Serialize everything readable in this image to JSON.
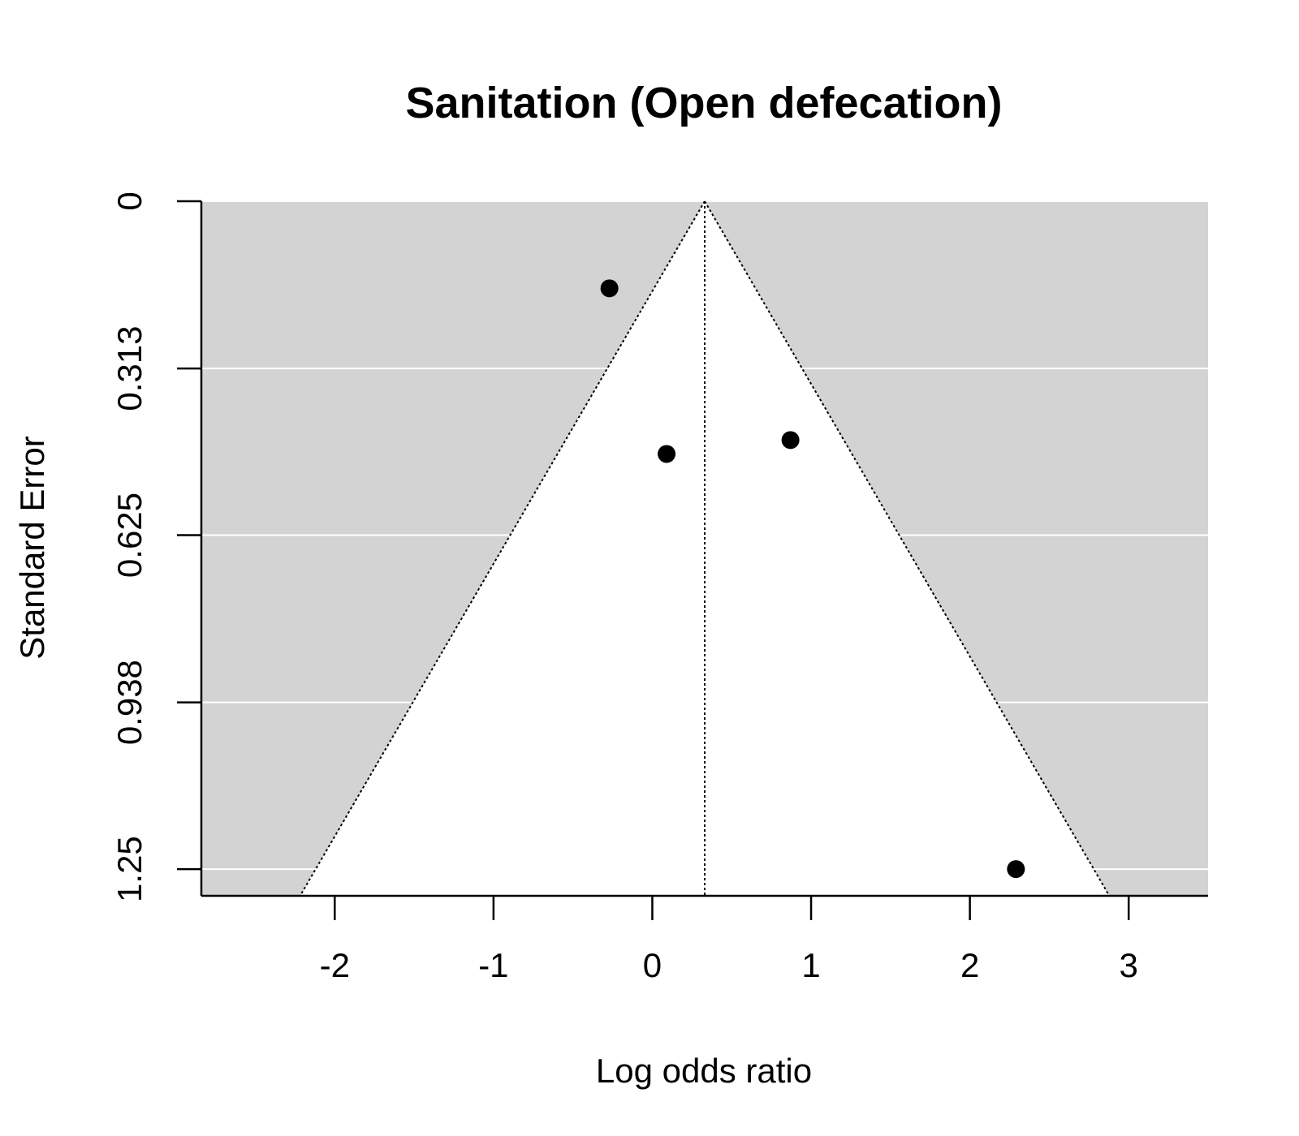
{
  "chart_data": {
    "type": "scatter",
    "subtype": "funnel",
    "title": "Sanitation (Open defecation)",
    "xlabel": "Log odds ratio",
    "ylabel": "Standard Error",
    "xlim": [
      -2.84,
      3.5
    ],
    "ylim": [
      1.3,
      0
    ],
    "x_ticks": [
      -2,
      -1,
      0,
      1,
      2,
      3
    ],
    "x_tick_labels": [
      "-2",
      "-1",
      "0",
      "1",
      "2",
      "3"
    ],
    "y_ticks": [
      0,
      0.313,
      0.625,
      0.938,
      1.25
    ],
    "y_tick_labels": [
      "0",
      "0.313",
      "0.625",
      "0.938",
      "1.25"
    ],
    "y_reversed": true,
    "grid": "horizontal",
    "background_color": "#d3d3d3",
    "funnel_color": "#ffffff",
    "point_color": "#000000",
    "pooled_estimate": 0.33,
    "points": [
      {
        "x": -0.27,
        "y": 0.163
      },
      {
        "x": 0.09,
        "y": 0.473
      },
      {
        "x": 0.87,
        "y": 0.447
      },
      {
        "x": 2.29,
        "y": 1.25
      }
    ]
  }
}
